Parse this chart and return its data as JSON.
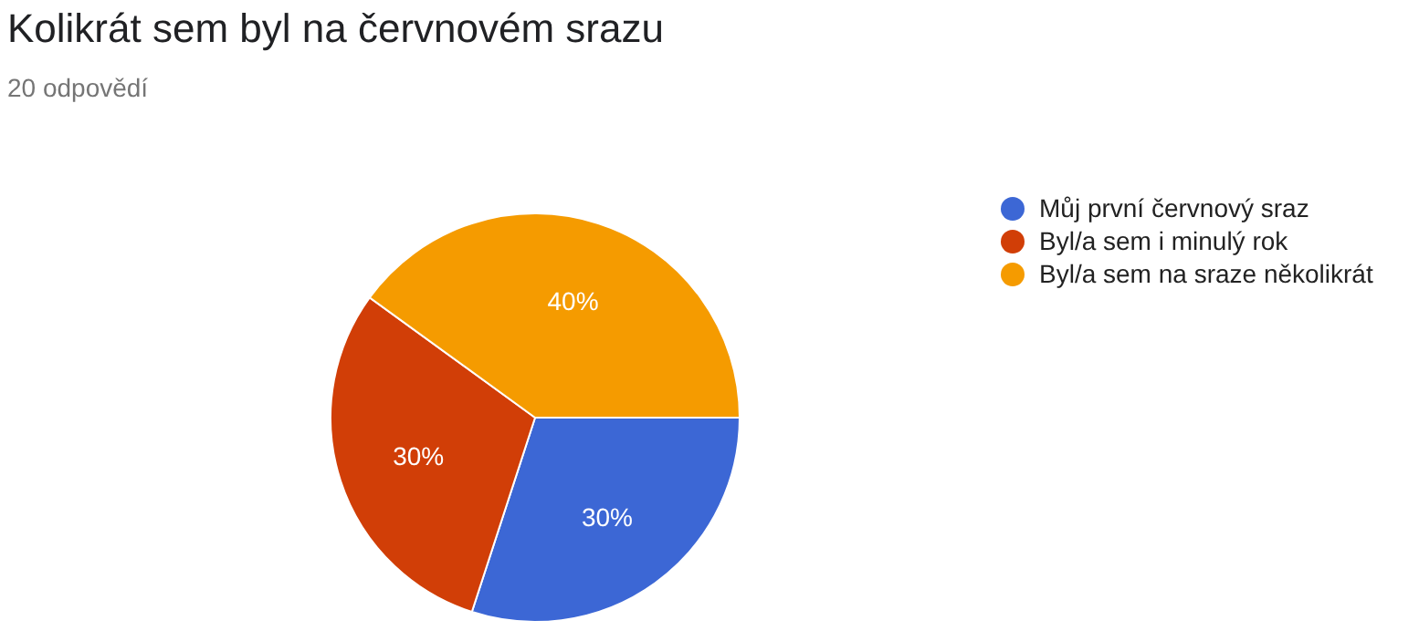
{
  "chart_data": {
    "type": "pie",
    "title": "Kolikrát sem byl na červnovém srazu",
    "subtitle": "20 odpovědí",
    "categories": [
      "Můj první červnový sraz",
      "Byl/a sem i minulý rok",
      "Byl/a sem na sraze několikrát"
    ],
    "values": [
      30,
      30,
      40
    ],
    "colors": [
      "#3c67d5",
      "#d13e07",
      "#f59b00"
    ],
    "value_labels": [
      "30%",
      "30%",
      "40%"
    ],
    "legend": "right"
  }
}
